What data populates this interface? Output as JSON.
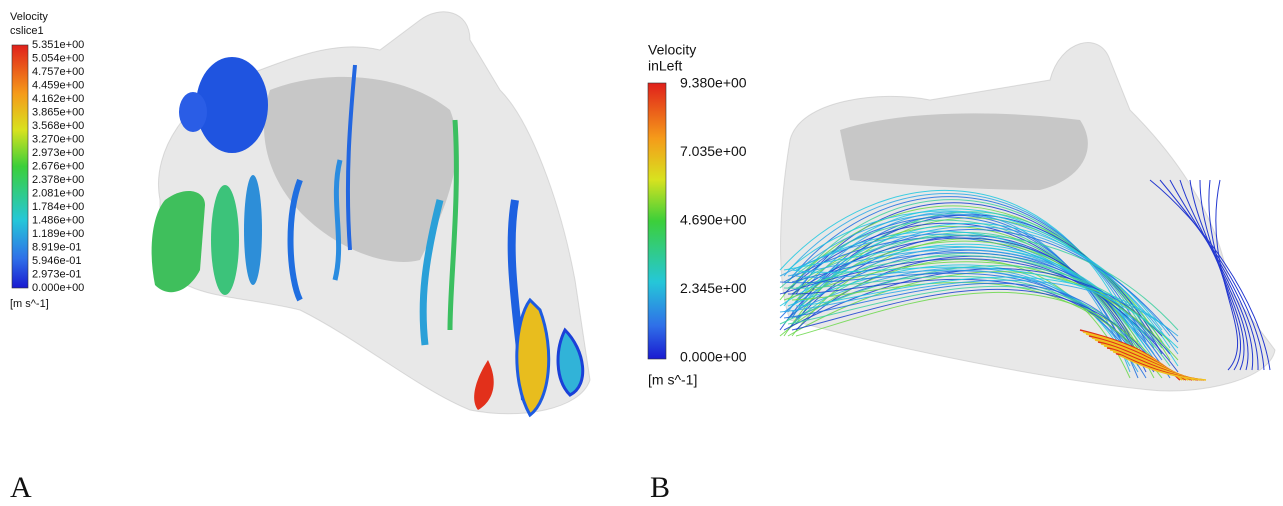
{
  "panels": [
    {
      "label": "A",
      "legend": {
        "title": "Velocity",
        "subtitle": "cslice1",
        "unit": "[m s^-1]",
        "ticks": [
          "5.351e+00",
          "5.054e+00",
          "4.757e+00",
          "4.459e+00",
          "4.162e+00",
          "3.865e+00",
          "3.568e+00",
          "3.270e+00",
          "2.973e+00",
          "2.676e+00",
          "2.378e+00",
          "2.081e+00",
          "1.784e+00",
          "1.486e+00",
          "1.189e+00",
          "8.919e-01",
          "5.946e-01",
          "2.973e-01",
          "0.000e+00"
        ]
      }
    },
    {
      "label": "B",
      "legend": {
        "title": "Velocity",
        "subtitle": "inLeft",
        "unit": "[m s^-1]",
        "ticks": [
          "9.380e+00",
          "7.035e+00",
          "4.690e+00",
          "2.345e+00",
          "0.000e+00"
        ]
      }
    }
  ]
}
